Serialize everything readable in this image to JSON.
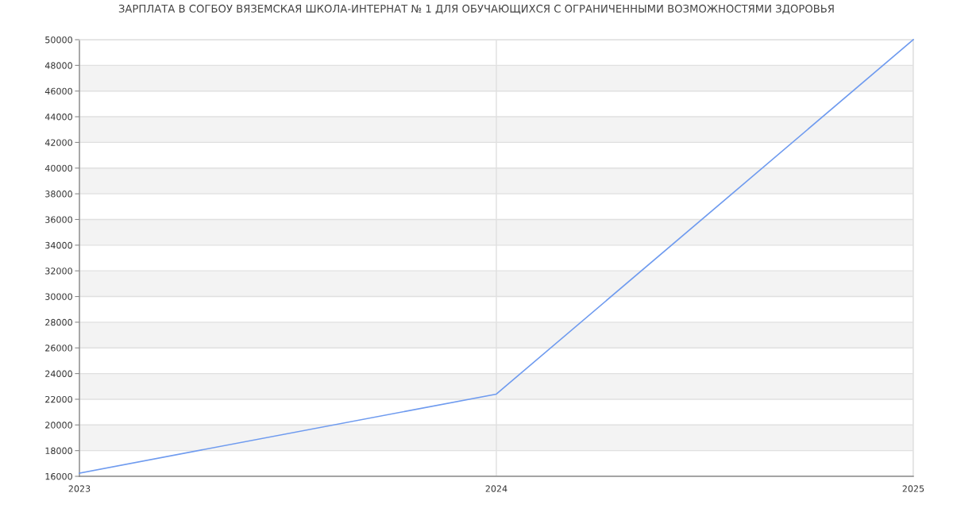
{
  "chart_data": {
    "type": "line",
    "title": "ЗАРПЛАТА В СОГБОУ ВЯЗЕМСКАЯ ШКОЛА-ИНТЕРНАТ № 1 ДЛЯ ОБУЧАЮЩИХСЯ С ОГРАНИЧЕННЫМИ ВОЗМОЖНОСТЯМИ ЗДОРОВЬЯ",
    "x": [
      2023,
      2024,
      2025
    ],
    "series": [
      {
        "color": "#6f9bef",
        "values": [
          16250,
          22400,
          50000
        ]
      }
    ],
    "xlim": [
      2023,
      2025
    ],
    "xticks": [
      2023,
      2024,
      2025
    ],
    "ylim": [
      16000,
      50000
    ],
    "yticks": [
      16000,
      18000,
      20000,
      22000,
      24000,
      26000,
      28000,
      30000,
      32000,
      34000,
      36000,
      38000,
      40000,
      42000,
      44000,
      46000,
      48000,
      50000
    ],
    "grid": true,
    "marker": "none",
    "line_style": "solid"
  }
}
